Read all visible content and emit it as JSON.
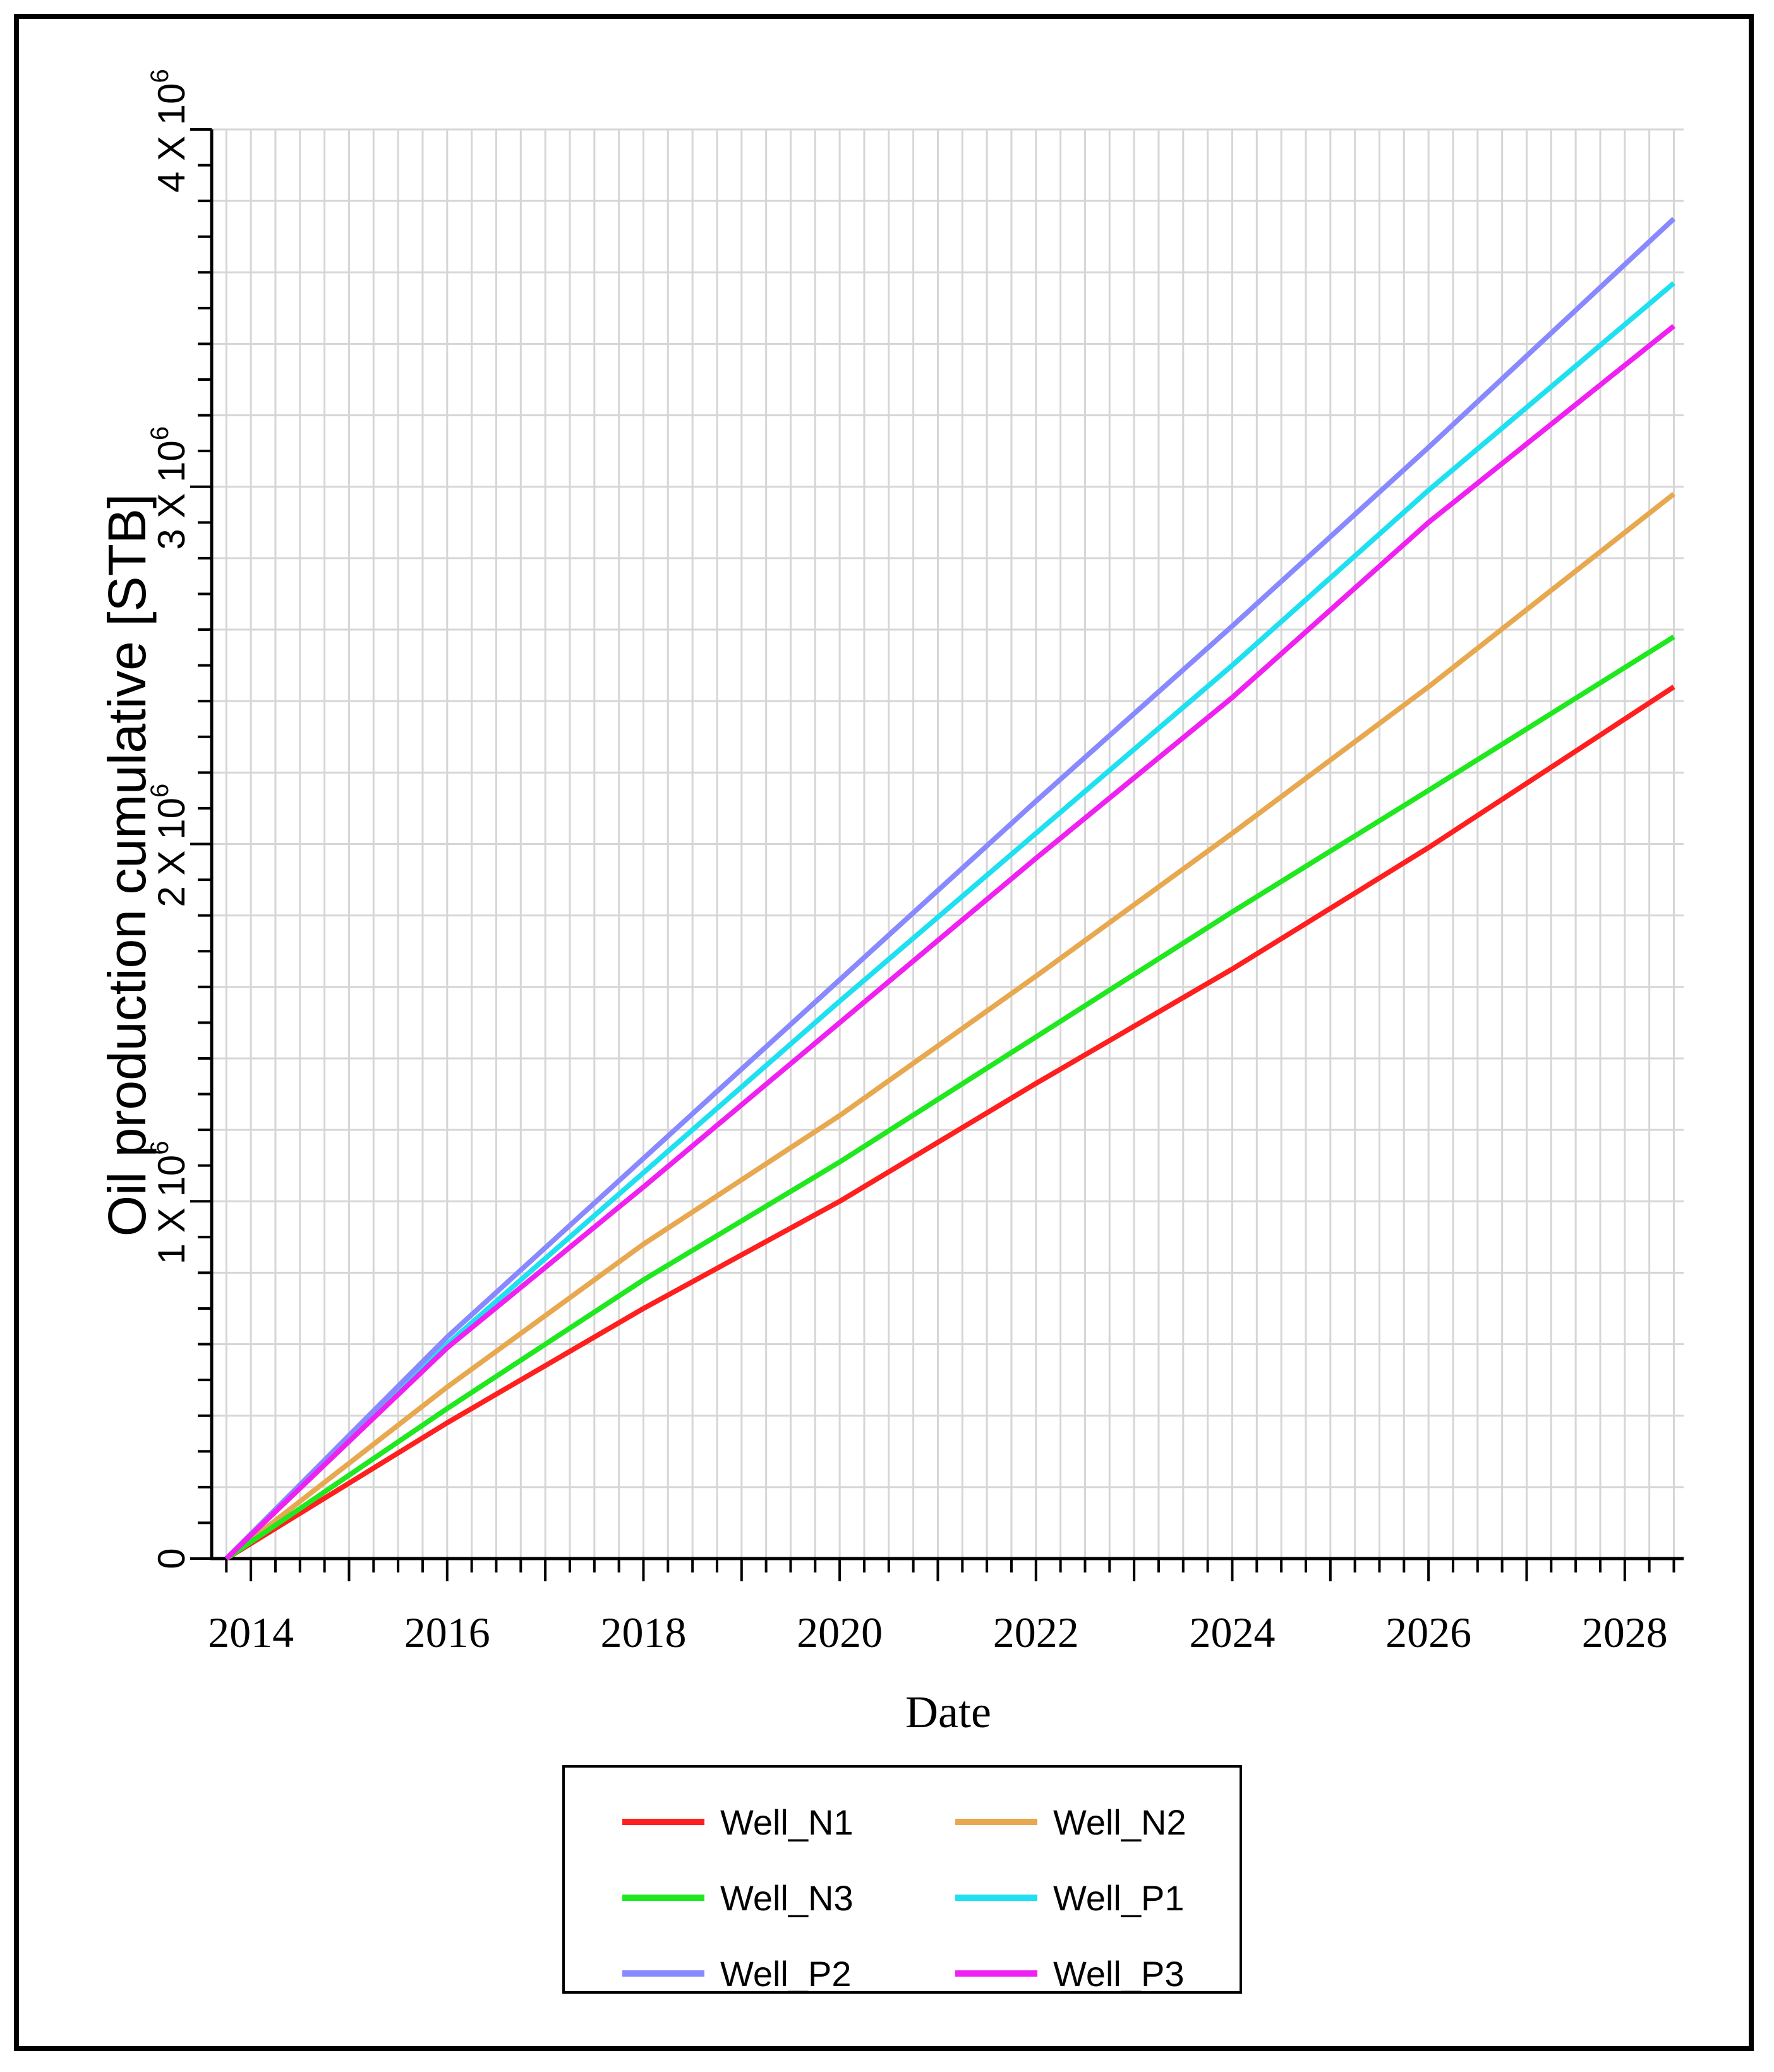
{
  "chart_data": {
    "type": "line",
    "xlabel": "Date",
    "ylabel": "Oil production cumulative [STB]",
    "xlim": [
      2013.6,
      2028.6
    ],
    "ylim": [
      0,
      4000000
    ],
    "x_ticks": [
      2014,
      2016,
      2018,
      2020,
      2022,
      2024,
      2026,
      2028
    ],
    "x_tick_labels": [
      "2014",
      "2016",
      "2018",
      "2020",
      "2022",
      "2024",
      "2026",
      "2028"
    ],
    "y_ticks": [
      0,
      1000000,
      2000000,
      3000000,
      4000000
    ],
    "y_tick_labels": [
      {
        "base": "0",
        "exp": ""
      },
      {
        "base": "1 X 10",
        "exp": "6"
      },
      {
        "base": "2 X 10",
        "exp": "6"
      },
      {
        "base": "3 X 10",
        "exp": "6"
      },
      {
        "base": "4 X 10",
        "exp": "6"
      }
    ],
    "grid": true,
    "legend_position": "bottom-center",
    "series": [
      {
        "name": "Well_N1",
        "color": "#ff1f1f",
        "x": [
          2013.75,
          2016,
          2018,
          2020,
          2022,
          2024,
          2026,
          2028.5
        ],
        "values": [
          0,
          380000,
          700000,
          1000000,
          1330000,
          1650000,
          1990000,
          2440000
        ]
      },
      {
        "name": "Well_N2",
        "color": "#e8a850",
        "x": [
          2013.75,
          2016,
          2018,
          2020,
          2022,
          2024,
          2026,
          2028.5
        ],
        "values": [
          0,
          480000,
          880000,
          1240000,
          1630000,
          2030000,
          2440000,
          2980000
        ]
      },
      {
        "name": "Well_N3",
        "color": "#1fe81f",
        "x": [
          2013.75,
          2016,
          2018,
          2020,
          2022,
          2024,
          2026,
          2028.5
        ],
        "values": [
          0,
          420000,
          780000,
          1110000,
          1460000,
          1810000,
          2150000,
          2580000
        ]
      },
      {
        "name": "Well_P1",
        "color": "#1fe0f0",
        "x": [
          2013.75,
          2016,
          2018,
          2020,
          2022,
          2024,
          2026,
          2028.5
        ],
        "values": [
          0,
          600000,
          1080000,
          1560000,
          2030000,
          2500000,
          2990000,
          3570000
        ]
      },
      {
        "name": "Well_P2",
        "color": "#8888ff",
        "x": [
          2013.75,
          2016,
          2018,
          2020,
          2022,
          2024,
          2026,
          2028.5
        ],
        "values": [
          0,
          620000,
          1120000,
          1620000,
          2120000,
          2610000,
          3110000,
          3750000
        ]
      },
      {
        "name": "Well_P3",
        "color": "#f020f0",
        "x": [
          2013.75,
          2016,
          2018,
          2020,
          2022,
          2024,
          2026,
          2028.5
        ],
        "values": [
          0,
          590000,
          1040000,
          1500000,
          1960000,
          2410000,
          2900000,
          3450000
        ]
      }
    ]
  }
}
